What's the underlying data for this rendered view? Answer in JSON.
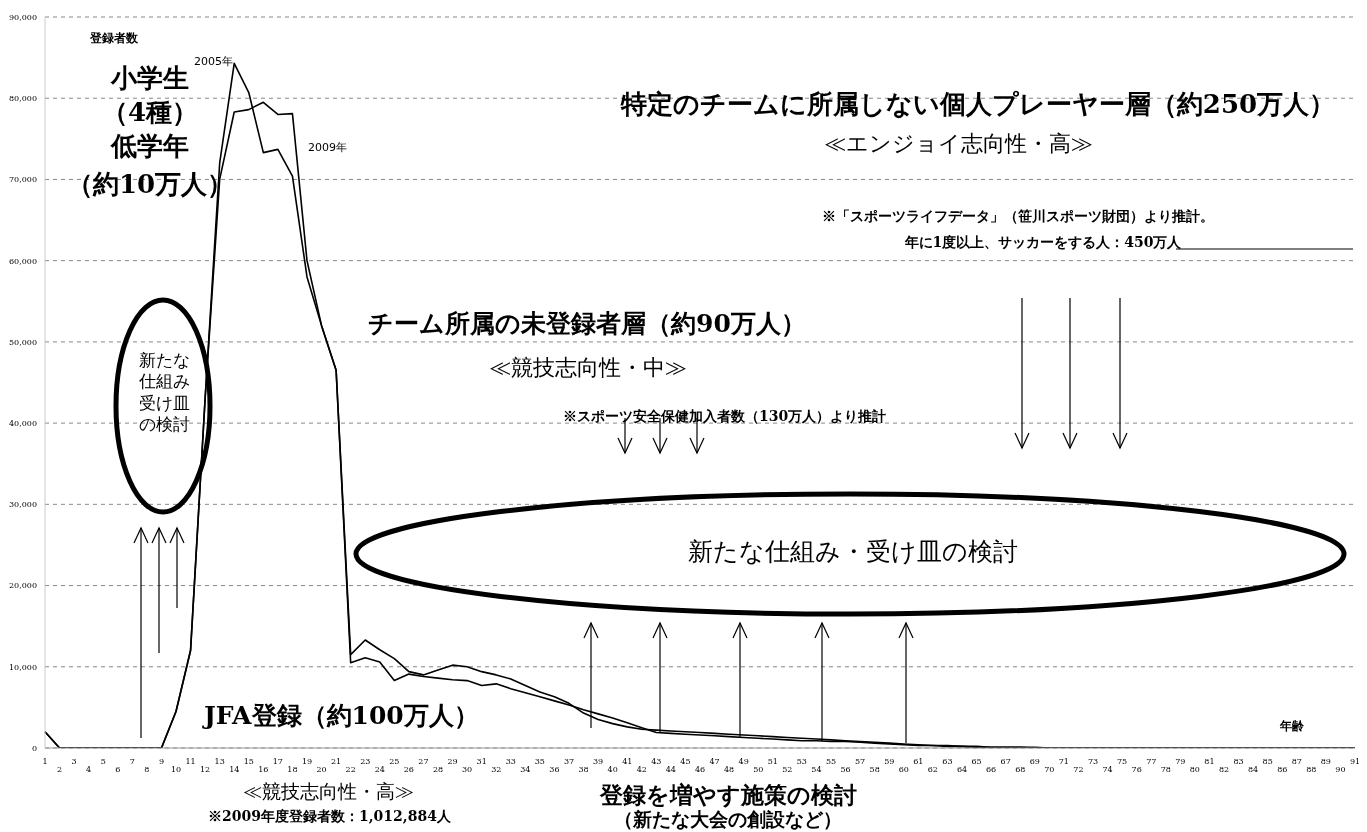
{
  "chart_data": {
    "type": "line",
    "xlabel": "年齢",
    "ylabel": "登録者数",
    "categories": [
      "1",
      "2",
      "3",
      "4",
      "5",
      "6",
      "7",
      "8",
      "9",
      "10",
      "11",
      "12",
      "13",
      "14",
      "15",
      "16",
      "17",
      "18",
      "19",
      "20",
      "21",
      "22",
      "23",
      "24",
      "25",
      "26",
      "27",
      "28",
      "29",
      "30",
      "31",
      "32",
      "33",
      "34",
      "35",
      "36",
      "37",
      "38",
      "39",
      "40",
      "41",
      "42",
      "43",
      "44",
      "45",
      "46",
      "47",
      "48",
      "49",
      "50",
      "51",
      "52",
      "53",
      "54",
      "55",
      "56",
      "57",
      "58",
      "59",
      "60",
      "61",
      "62",
      "63",
      "64",
      "65",
      "66",
      "67",
      "68",
      "69",
      "70",
      "71",
      "72",
      "73",
      "74",
      "75",
      "76",
      "77",
      "78",
      "79",
      "80",
      "81",
      "82",
      "83",
      "84",
      "85",
      "86",
      "87",
      "88",
      "89",
      "90",
      "91"
    ],
    "series": [
      {
        "name": "2005年",
        "color": "#000000",
        "values": [
          2000,
          0,
          0,
          0,
          0,
          0,
          0,
          0,
          0,
          4500,
          12000,
          43000,
          72000,
          84300,
          80700,
          73300,
          73700,
          70400,
          58000,
          52000,
          46500,
          11500,
          13300,
          12100,
          11000,
          9400,
          9000,
          9600,
          10200,
          10000,
          9400,
          9000,
          8500,
          7700,
          6900,
          6300,
          5500,
          4300,
          3500,
          3000,
          2600,
          2300,
          2200,
          2100,
          2000,
          1900,
          1800,
          1700,
          1600,
          1500,
          1400,
          1300,
          1200,
          1100,
          1000,
          900,
          800,
          700,
          600,
          500,
          400,
          300,
          300,
          200,
          200,
          100,
          100,
          100,
          100,
          0,
          0,
          0,
          0,
          0,
          0,
          0,
          0,
          0,
          0,
          0,
          0,
          0,
          0,
          0,
          0,
          0,
          0,
          0,
          0,
          0,
          0
        ]
      },
      {
        "name": "2009年",
        "color": "#000000",
        "values": [
          2000,
          0,
          0,
          0,
          0,
          0,
          0,
          0,
          0,
          4500,
          12000,
          43000,
          70000,
          78300,
          78600,
          79500,
          78000,
          78100,
          60000,
          52000,
          46500,
          10500,
          11100,
          10600,
          8300,
          9100,
          8800,
          8600,
          8400,
          8300,
          7700,
          7900,
          7300,
          6800,
          6300,
          5800,
          5300,
          4700,
          4200,
          3700,
          3100,
          2500,
          1900,
          1800,
          1700,
          1600,
          1500,
          1400,
          1300,
          1200,
          1100,
          1000,
          900,
          900,
          800,
          800,
          700,
          600,
          500,
          400,
          300,
          300,
          200,
          200,
          100,
          100,
          100,
          100,
          0,
          0,
          0,
          0,
          0,
          0,
          0,
          0,
          0,
          0,
          0,
          0,
          0,
          0,
          0,
          0,
          0,
          0,
          0,
          0,
          0,
          0,
          0
        ]
      }
    ],
    "ylim": [
      0,
      90000
    ],
    "yticks": [
      0,
      {
        "value": 10000,
        "label": "10,000"
      },
      {
        "value": 20000,
        "label": "20,000"
      },
      {
        "value": 30000,
        "label": "30,000"
      },
      {
        "value": 40000,
        "label": "40,000"
      },
      {
        "value": 50000,
        "label": "50,000"
      },
      {
        "value": 60000,
        "label": "60,000"
      },
      {
        "value": 70000,
        "label": "70,000"
      },
      {
        "value": 80000,
        "label": "80,000"
      },
      {
        "value": 90000,
        "label": "90,000"
      }
    ],
    "grid": "y",
    "legend": false,
    "marker": "none",
    "line_style": "solid",
    "annotations": [
      "小学生",
      "（4種）",
      "低学年",
      "（約10万人）",
      "新たな仕組み受け皿の検討",
      "特定のチームに所属しない個人プレーヤー層（約250万人）",
      "≪エンジョイ志向性・高≫",
      "※「スポーツライフデータ」（笹川スポーツ財団）より推計。",
      "年に1度以上、サッカーをする人：450万人",
      "チーム所属の未登録者層（約90万人）",
      "≪競技志向性・中≫",
      "※スポーツ安全保健加入者数（130万人）より推計",
      "新たな仕組み・受け皿の検討",
      "JFA登録（約100万人）",
      "≪競技志向性・高≫",
      "※2009年度登録者数：1,012,884人",
      "登録を増やす施策の検討",
      "（新たな大会の創設など）"
    ]
  }
}
